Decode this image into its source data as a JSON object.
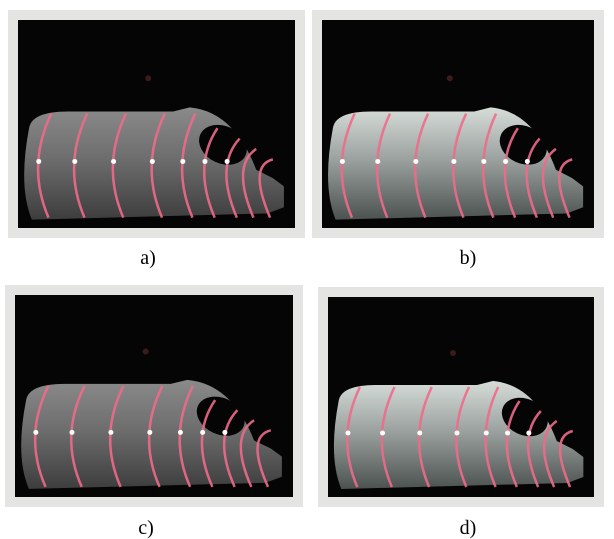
{
  "panels": [
    {
      "caption": "a)"
    },
    {
      "caption": "b)"
    },
    {
      "caption": "c)"
    },
    {
      "caption": "d)"
    }
  ]
}
